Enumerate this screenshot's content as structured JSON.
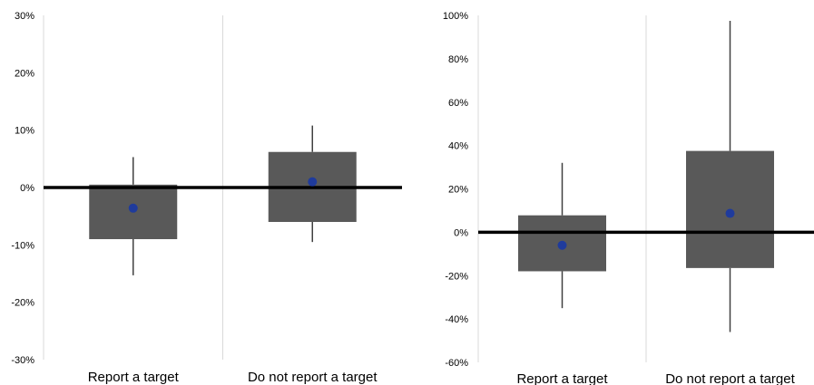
{
  "colors": {
    "box": "#595959",
    "whisker": "#404040",
    "mean": "#1f3b9c",
    "zero_line": "#000000",
    "divider": "#d9d9d9"
  },
  "chart_data": [
    {
      "type": "box",
      "categories": [
        "Report a target",
        "Do not report a target"
      ],
      "ylim": [
        -0.3,
        0.3
      ],
      "yticks": [
        -0.3,
        -0.2,
        -0.1,
        0.0,
        0.1,
        0.2,
        0.3
      ],
      "ytick_labels": [
        "-30%",
        "-20%",
        "-10%",
        "0%",
        "10%",
        "20%",
        "30%"
      ],
      "grid": false,
      "boxes": [
        {
          "whisker_low": -0.153,
          "box_low": -0.09,
          "box_high": 0.005,
          "whisker_high": 0.053,
          "mean": -0.036
        },
        {
          "whisker_low": -0.095,
          "box_low": -0.06,
          "box_high": 0.062,
          "whisker_high": 0.108,
          "mean": 0.01
        }
      ]
    },
    {
      "type": "box",
      "categories": [
        "Report a target",
        "Do not report a target"
      ],
      "ylim": [
        -0.6,
        1.0
      ],
      "yticks": [
        -0.6,
        -0.4,
        -0.2,
        0.0,
        0.2,
        0.4,
        0.6,
        0.8,
        1.0
      ],
      "ytick_labels": [
        "-60%",
        "-40%",
        "-20%",
        "0%",
        "20%",
        "40%",
        "60%",
        "80%",
        "100%"
      ],
      "grid": false,
      "boxes": [
        {
          "whisker_low": -0.35,
          "box_low": -0.18,
          "box_high": 0.078,
          "whisker_high": 0.32,
          "mean": -0.06
        },
        {
          "whisker_low": -0.46,
          "box_low": -0.165,
          "box_high": 0.375,
          "whisker_high": 0.975,
          "mean": 0.087
        }
      ]
    }
  ]
}
